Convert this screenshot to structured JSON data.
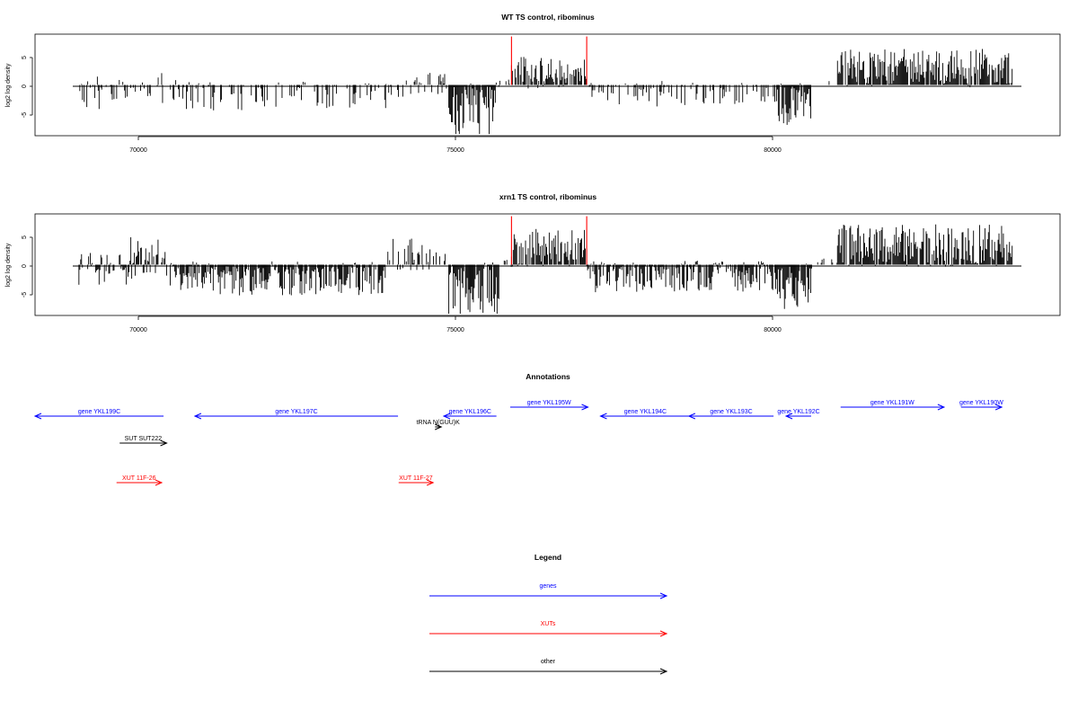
{
  "colors": {
    "gene": "#0000ff",
    "xut": "#ff0000",
    "other": "#000000",
    "signal": "#000000",
    "marker": "#ff0000"
  },
  "chart_data": [
    {
      "type": "bar",
      "title": "WT TS control, ribominus",
      "ylabel": "log2 log density",
      "xlim": [
        68200,
        84550
      ],
      "ylim": [
        -8.8,
        8.8
      ],
      "x_ticks": [
        70000,
        75000,
        80000
      ],
      "x_tick_labels": [
        "70000",
        "75000",
        "80000"
      ],
      "y_ticks": [
        5,
        0,
        -5
      ],
      "y_tick_labels": [
        "5",
        "0",
        "-5"
      ],
      "grid": false,
      "baseline": 0,
      "x_range_data": [
        68900,
        83800
      ],
      "vertical_markers": [
        75800,
        77000
      ],
      "signal_profile": [
        {
          "from": 68900,
          "to": 69800,
          "pos": 1.2,
          "neg": 3,
          "density": 0.5
        },
        {
          "from": 69800,
          "to": 70600,
          "pos": 1.8,
          "neg": 2.5,
          "density": 0.45
        },
        {
          "from": 70600,
          "to": 73800,
          "pos": 0.4,
          "neg": 3.2,
          "density": 0.35
        },
        {
          "from": 73800,
          "to": 74650,
          "pos": 1.5,
          "neg": 1.5,
          "density": 0.3
        },
        {
          "from": 74650,
          "to": 74800,
          "pos": 4.5,
          "neg": 1.0,
          "density": 0.5
        },
        {
          "from": 74800,
          "to": 75600,
          "pos": 0.3,
          "neg": 6.5,
          "density": 0.95
        },
        {
          "from": 75600,
          "to": 75800,
          "pos": 0.8,
          "neg": 0.5,
          "density": 0.4
        },
        {
          "from": 75800,
          "to": 77000,
          "pos": 3.5,
          "neg": 0.5,
          "density": 0.8
        },
        {
          "from": 77000,
          "to": 78200,
          "pos": 0.3,
          "neg": 2.8,
          "density": 0.5
        },
        {
          "from": 78200,
          "to": 80000,
          "pos": 0.5,
          "neg": 2.5,
          "density": 0.45
        },
        {
          "from": 80000,
          "to": 80600,
          "pos": 0.3,
          "neg": 5.0,
          "density": 0.95
        },
        {
          "from": 80600,
          "to": 81000,
          "pos": 0.5,
          "neg": 0.5,
          "density": 0.2
        },
        {
          "from": 81000,
          "to": 83800,
          "pos": 4.5,
          "neg": 0.3,
          "density": 0.9
        }
      ]
    },
    {
      "type": "bar",
      "title": "xrn1 TS control, ribominus",
      "ylabel": "log2 log density",
      "xlim": [
        68200,
        84550
      ],
      "ylim": [
        -8.8,
        8.8
      ],
      "x_ticks": [
        70000,
        75000,
        80000
      ],
      "x_tick_labels": [
        "70000",
        "75000",
        "80000"
      ],
      "y_ticks": [
        5,
        0,
        -5
      ],
      "y_tick_labels": [
        "5",
        "0",
        "-5"
      ],
      "grid": false,
      "baseline": 0,
      "x_range_data": [
        68900,
        83800
      ],
      "vertical_markers": [
        75800,
        77000
      ],
      "signal_profile": [
        {
          "from": 68900,
          "to": 69700,
          "pos": 1.5,
          "neg": 3.5,
          "density": 0.6
        },
        {
          "from": 69700,
          "to": 70300,
          "pos": 3.5,
          "neg": 2.0,
          "density": 0.7
        },
        {
          "from": 70300,
          "to": 73800,
          "pos": 0.4,
          "neg": 3.8,
          "density": 0.9
        },
        {
          "from": 73800,
          "to": 74600,
          "pos": 3.5,
          "neg": 0.8,
          "density": 0.5
        },
        {
          "from": 74600,
          "to": 74800,
          "pos": 2.0,
          "neg": 1.0,
          "density": 0.4
        },
        {
          "from": 74800,
          "to": 75600,
          "pos": 0.3,
          "neg": 6.8,
          "density": 0.95
        },
        {
          "from": 75600,
          "to": 75800,
          "pos": 1.0,
          "neg": 0.8,
          "density": 0.5
        },
        {
          "from": 75800,
          "to": 77000,
          "pos": 4.5,
          "neg": 0.3,
          "density": 0.95
        },
        {
          "from": 77000,
          "to": 80000,
          "pos": 0.5,
          "neg": 3.5,
          "density": 0.85
        },
        {
          "from": 80000,
          "to": 80600,
          "pos": 0.3,
          "neg": 5.5,
          "density": 0.95
        },
        {
          "from": 80600,
          "to": 81000,
          "pos": 1.0,
          "neg": 0.5,
          "density": 0.3
        },
        {
          "from": 81000,
          "to": 83800,
          "pos": 5.0,
          "neg": 0.3,
          "density": 0.95
        }
      ]
    }
  ],
  "annotations": {
    "title": "Annotations",
    "items": [
      {
        "label": "gene YKL199C",
        "start": 68200,
        "end": 70250,
        "dir": "left",
        "track": "gene-low",
        "kind": "gene"
      },
      {
        "label": "gene YKL197C",
        "start": 70750,
        "end": 73990,
        "dir": "left",
        "track": "gene-low",
        "kind": "gene"
      },
      {
        "label": "gene YKL196C",
        "start": 74720,
        "end": 75560,
        "dir": "left",
        "track": "gene-low",
        "kind": "gene"
      },
      {
        "label": "gene YKL195W",
        "start": 75780,
        "end": 77020,
        "dir": "right",
        "track": "gene-high",
        "kind": "gene"
      },
      {
        "label": "gene YKL194C",
        "start": 77220,
        "end": 78650,
        "dir": "left",
        "track": "gene-low",
        "kind": "gene"
      },
      {
        "label": "gene YKL193C",
        "start": 78630,
        "end": 79980,
        "dir": "left",
        "track": "gene-low",
        "kind": "gene"
      },
      {
        "label": "gene YKL192C",
        "start": 80180,
        "end": 80580,
        "dir": "left",
        "track": "gene-low",
        "kind": "gene"
      },
      {
        "label": "gene YKL191W",
        "start": 81050,
        "end": 82700,
        "dir": "right",
        "track": "gene-high",
        "kind": "gene"
      },
      {
        "label": "gene YKL190W",
        "start": 82970,
        "end": 83620,
        "dir": "right",
        "track": "gene-high",
        "kind": "gene"
      },
      {
        "label": "tRNA N(GUU)K",
        "start": 74580,
        "end": 74680,
        "dir": "right",
        "track": "trna",
        "kind": "other"
      },
      {
        "label": "SUT SUT222",
        "start": 69550,
        "end": 70300,
        "dir": "right",
        "track": "sut",
        "kind": "other"
      },
      {
        "label": "XUT 11F-26",
        "start": 69500,
        "end": 70220,
        "dir": "right",
        "track": "xut",
        "kind": "xut"
      },
      {
        "label": "XUT 11F-27",
        "start": 74000,
        "end": 74550,
        "dir": "right",
        "track": "xut",
        "kind": "xut"
      }
    ]
  },
  "legend": {
    "title": "Legend",
    "items": [
      {
        "label": "genes",
        "kind": "gene"
      },
      {
        "label": "XUTs",
        "kind": "xut"
      },
      {
        "label": "other",
        "kind": "other"
      }
    ]
  }
}
